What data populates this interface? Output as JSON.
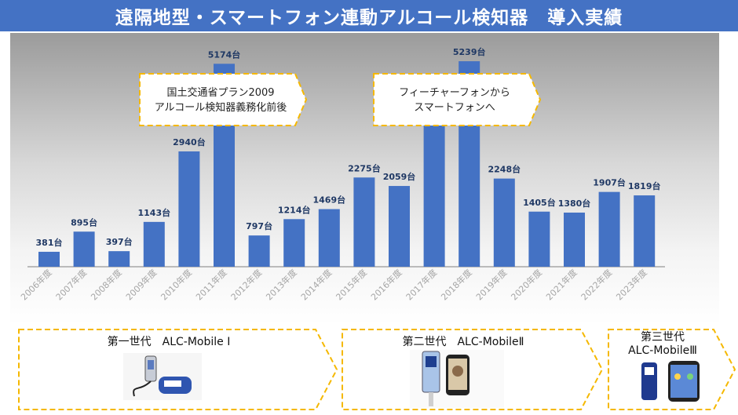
{
  "header": {
    "title": "遠隔地型・スマートフォン連動アルコール検知器　導入実績"
  },
  "chart_data": {
    "type": "bar",
    "title": "",
    "xlabel": "",
    "ylabel": "",
    "categories": [
      "2006年度",
      "2007年度",
      "2008年度",
      "2009年度",
      "2010年度",
      "2011年度",
      "2012年度",
      "2013年度",
      "2014年度",
      "2015年度",
      "2016年度",
      "2017年度",
      "2018年度",
      "2019年度",
      "2020年度",
      "2021年度",
      "2022年度",
      "2023年度"
    ],
    "values": [
      381,
      895,
      397,
      1143,
      2940,
      5174,
      797,
      1214,
      1469,
      2275,
      2059,
      4300,
      5239,
      2248,
      1405,
      1380,
      1907,
      1819
    ],
    "data_labels": [
      "381台",
      "895台",
      "397台",
      "1143台",
      "2940台",
      "5174台",
      "797台",
      "1214台",
      "1469台",
      "2275台",
      "2059台",
      "",
      "5239台",
      "2248台",
      "1405台",
      "1380台",
      "1907台",
      "1819台"
    ],
    "bar_color": "#4472c4",
    "label_color": "#1f3864",
    "grid": false,
    "annotations": [
      {
        "lines": [
          "国土交通省プラン2009",
          "アルコール検知器義務化前後"
        ]
      },
      {
        "lines": [
          "フィーチャーフォンから",
          "スマートフォンへ"
        ]
      }
    ]
  },
  "generations": [
    {
      "label": "第一世代　ALC-Mobile Ⅰ",
      "device": "breathalyzer-with-cable"
    },
    {
      "label": "第二世代　ALC-MobileⅡ",
      "device": "breathalyzer-and-phone"
    },
    {
      "label": "第三世代\nALC-MobileⅢ",
      "device": "handheld-and-smartphone"
    }
  ],
  "colors": {
    "banner": "#4472c4",
    "arrow_outline": "#f5b800",
    "bar": "#4472c4"
  }
}
